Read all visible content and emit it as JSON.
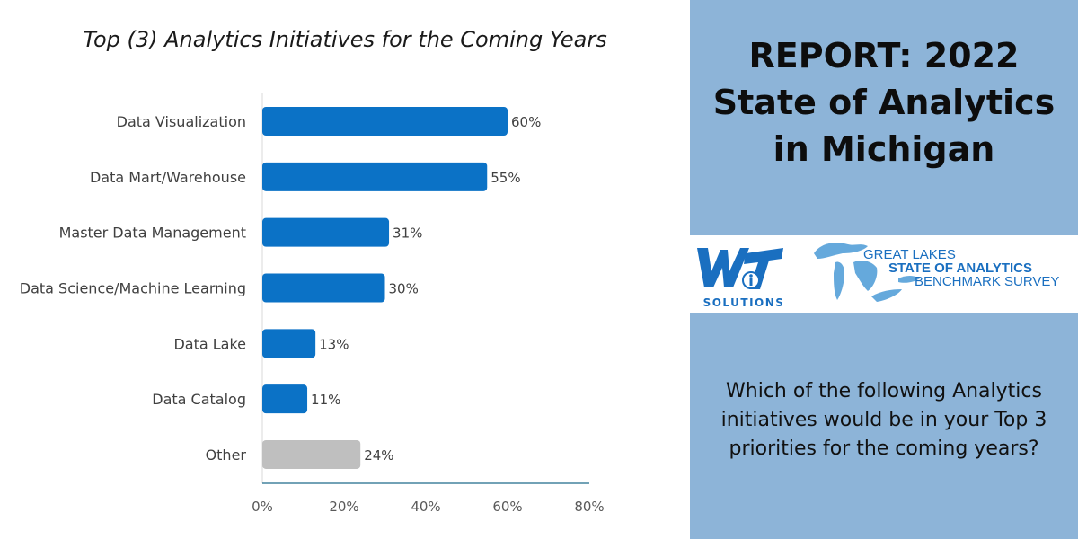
{
  "chart_data": {
    "type": "bar",
    "orientation": "horizontal",
    "title": "Top (3) Analytics Initiatives for the Coming Years",
    "categories": [
      "Data Visualization",
      "Data Mart/Warehouse",
      "Master Data Management",
      "Data Science/Machine Learning",
      "Data Lake",
      "Data Catalog",
      "Other"
    ],
    "values": [
      60,
      55,
      31,
      30,
      13,
      11,
      24
    ],
    "data_labels": [
      "60%",
      "55%",
      "31%",
      "30%",
      "13%",
      "11%",
      "24%"
    ],
    "bar_colors": [
      "#0b72c6",
      "#0b72c6",
      "#0b72c6",
      "#0b72c6",
      "#0b72c6",
      "#0b72c6",
      "#bfbfbf"
    ],
    "xlim": [
      0,
      80
    ],
    "x_ticks": [
      "0%",
      "20%",
      "40%",
      "60%",
      "80%"
    ],
    "grid": false,
    "legend": "none"
  },
  "side_panel": {
    "title_lines": [
      "REPORT: 2022",
      "State of Analytics",
      "in Michigan"
    ],
    "background": "#8db4d8",
    "question_lines": [
      "Which of the following Analytics",
      "initiatives would be in your Top 3",
      "priorities for the coming years?"
    ]
  },
  "logos": {
    "wit_solutions": "SOLUTIONS",
    "great_lakes_line1": "GREAT LAKES",
    "great_lakes_line2": "STATE OF ANALYTICS",
    "great_lakes_line3": "BENCHMARK SURVEY",
    "logo_color": "#1a6fc0"
  }
}
